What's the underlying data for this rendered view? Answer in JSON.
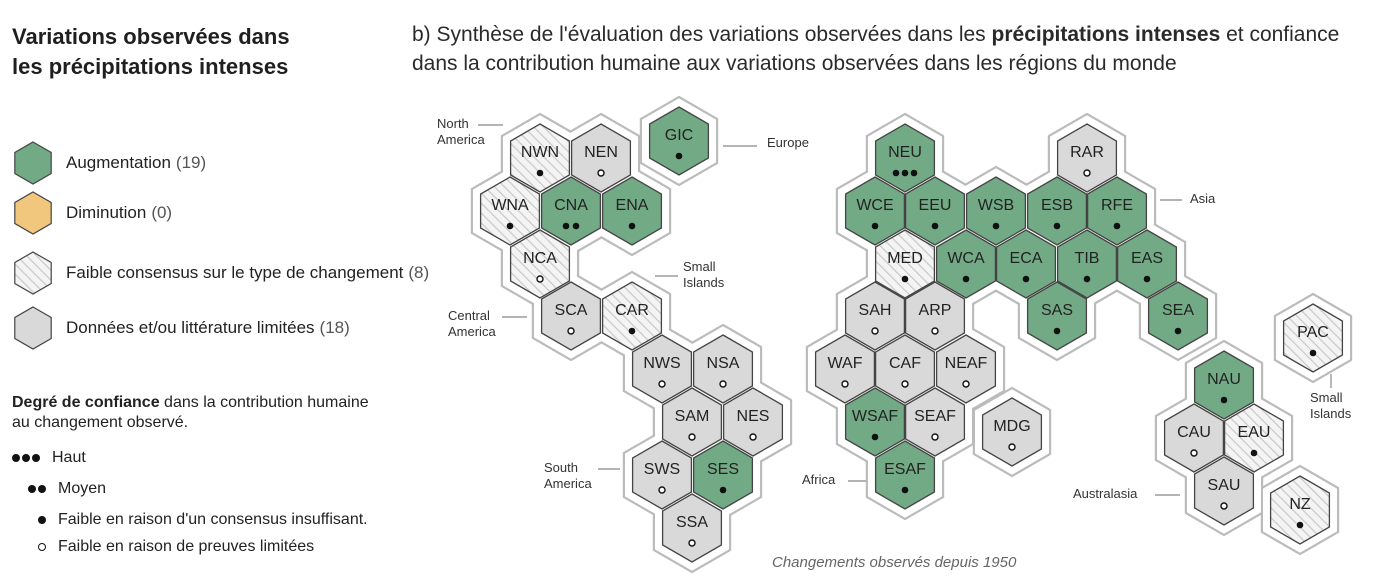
{
  "header": {
    "title_line1": "Variations  observées dans",
    "title_line2": "les précipitations intenses",
    "subtitle_pre": "b) Synthèse de l'évaluation des variations observées dans les ",
    "subtitle_bold": "précipitations intenses",
    "subtitle_post": " et confiance dans la contribution humaine aux variations observées dans les régions du monde"
  },
  "legend": [
    {
      "key": "increase",
      "label": "Augmentation",
      "count": "(19)",
      "color": "#73aa86"
    },
    {
      "key": "decrease",
      "label": "Diminution",
      "count": "(0)",
      "color": "#f0c77c"
    },
    {
      "key": "low_agreement",
      "label": "Faible consensus sur le type de changement",
      "count": "(8)",
      "color": "#f2f2f2"
    },
    {
      "key": "limited",
      "label": "Données et/ou littérature limitées",
      "count": "(18)",
      "color": "#d9d9d9"
    }
  ],
  "confidence": {
    "title_bold": "Degré de confiance",
    "title_rest": " dans la contribution humaine au changement observé.",
    "levels": [
      {
        "dots": 3,
        "label": "Haut"
      },
      {
        "dots": 2,
        "label": "Moyen"
      },
      {
        "dots": 1,
        "label": "Faible en raison d'un consensus insuffisant."
      },
      {
        "dots": 0,
        "label": "Faible en raison de preuves limitées"
      }
    ]
  },
  "continents": [
    {
      "name": "North America",
      "lines": [
        "North",
        "America"
      ]
    },
    {
      "name": "Europe",
      "lines": [
        "Europe"
      ]
    },
    {
      "name": "Asia",
      "lines": [
        "Asia"
      ]
    },
    {
      "name": "Central America",
      "lines": [
        "Central",
        "America"
      ]
    },
    {
      "name": "Small Islands (Caribbean)",
      "lines": [
        "Small",
        "Islands"
      ]
    },
    {
      "name": "South America",
      "lines": [
        "South",
        "America"
      ]
    },
    {
      "name": "Africa",
      "lines": [
        "Africa"
      ]
    },
    {
      "name": "Australasia",
      "lines": [
        "Australasia"
      ]
    },
    {
      "name": "Small Islands (Pacific)",
      "lines": [
        "Small",
        "Islands"
      ]
    }
  ],
  "regions": [
    {
      "code": "NWN",
      "status": "low_agreement",
      "conf": "low_agreement"
    },
    {
      "code": "NEN",
      "status": "limited",
      "conf": "limited"
    },
    {
      "code": "GIC",
      "status": "increase",
      "conf": "low_agreement"
    },
    {
      "code": "WNA",
      "status": "low_agreement",
      "conf": "low_agreement"
    },
    {
      "code": "CNA",
      "status": "increase",
      "conf": "medium"
    },
    {
      "code": "ENA",
      "status": "increase",
      "conf": "low_agreement"
    },
    {
      "code": "NCA",
      "status": "low_agreement",
      "conf": "limited"
    },
    {
      "code": "SCA",
      "status": "limited",
      "conf": "limited"
    },
    {
      "code": "CAR",
      "status": "low_agreement",
      "conf": "low_agreement"
    },
    {
      "code": "NWS",
      "status": "limited",
      "conf": "limited"
    },
    {
      "code": "NSA",
      "status": "limited",
      "conf": "limited"
    },
    {
      "code": "SAM",
      "status": "limited",
      "conf": "limited"
    },
    {
      "code": "NES",
      "status": "limited",
      "conf": "limited"
    },
    {
      "code": "SWS",
      "status": "limited",
      "conf": "limited"
    },
    {
      "code": "SES",
      "status": "increase",
      "conf": "low_agreement"
    },
    {
      "code": "SSA",
      "status": "limited",
      "conf": "limited"
    },
    {
      "code": "NEU",
      "status": "increase",
      "conf": "high"
    },
    {
      "code": "RAR",
      "status": "limited",
      "conf": "limited"
    },
    {
      "code": "WCE",
      "status": "increase",
      "conf": "low_agreement"
    },
    {
      "code": "EEU",
      "status": "increase",
      "conf": "low_agreement"
    },
    {
      "code": "WSB",
      "status": "increase",
      "conf": "low_agreement"
    },
    {
      "code": "ESB",
      "status": "increase",
      "conf": "low_agreement"
    },
    {
      "code": "RFE",
      "status": "increase",
      "conf": "low_agreement"
    },
    {
      "code": "MED",
      "status": "low_agreement",
      "conf": "low_agreement"
    },
    {
      "code": "WCA",
      "status": "increase",
      "conf": "low_agreement"
    },
    {
      "code": "ECA",
      "status": "increase",
      "conf": "low_agreement"
    },
    {
      "code": "TIB",
      "status": "increase",
      "conf": "low_agreement"
    },
    {
      "code": "EAS",
      "status": "increase",
      "conf": "low_agreement"
    },
    {
      "code": "SAH",
      "status": "limited",
      "conf": "limited"
    },
    {
      "code": "ARP",
      "status": "limited",
      "conf": "limited"
    },
    {
      "code": "SAS",
      "status": "increase",
      "conf": "low_agreement"
    },
    {
      "code": "SEA",
      "status": "increase",
      "conf": "low_agreement"
    },
    {
      "code": "WAF",
      "status": "limited",
      "conf": "limited"
    },
    {
      "code": "CAF",
      "status": "limited",
      "conf": "limited"
    },
    {
      "code": "NEAF",
      "status": "limited",
      "conf": "limited"
    },
    {
      "code": "WSAF",
      "status": "increase",
      "conf": "low_agreement"
    },
    {
      "code": "SEAF",
      "status": "limited",
      "conf": "limited"
    },
    {
      "code": "MDG",
      "status": "limited",
      "conf": "limited"
    },
    {
      "code": "ESAF",
      "status": "increase",
      "conf": "low_agreement"
    },
    {
      "code": "PAC",
      "status": "low_agreement",
      "conf": "low_agreement"
    },
    {
      "code": "NAU",
      "status": "increase",
      "conf": "low_agreement"
    },
    {
      "code": "CAU",
      "status": "limited",
      "conf": "limited"
    },
    {
      "code": "EAU",
      "status": "low_agreement",
      "conf": "low_agreement"
    },
    {
      "code": "SAU",
      "status": "limited",
      "conf": "limited"
    },
    {
      "code": "NZ",
      "status": "low_agreement",
      "conf": "low_agreement"
    }
  ],
  "footer": "Changements observés depuis 1950",
  "colors": {
    "increase": "#73aa86",
    "decrease": "#f0c77c",
    "limited": "#d9d9d9",
    "low_agreement": "#f2f2f2",
    "stroke": "#444444",
    "outline": "#bbbbbb"
  }
}
